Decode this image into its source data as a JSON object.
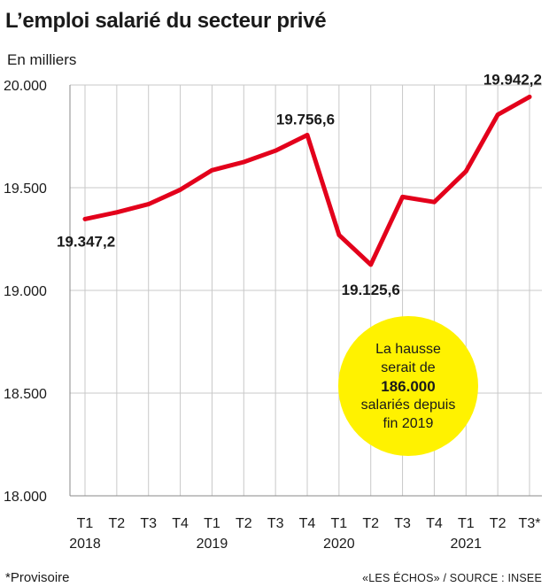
{
  "title": "L’emploi salarié du secteur privé",
  "subtitle": "En milliers",
  "footnote": "*Provisoire",
  "source": "«LES ÉCHOS» / SOURCE : INSEE",
  "callout": {
    "line1": "La hausse",
    "line2": "serait de",
    "line3": "186.000",
    "line4": "salariés depuis",
    "line5": "fin 2019",
    "color": "#fff200"
  },
  "chart_data": {
    "type": "line",
    "title": "L’emploi salarié du secteur privé",
    "ylabel": "En milliers",
    "ylim": [
      18000,
      20000
    ],
    "yticks": [
      18000,
      18500,
      19000,
      19500,
      20000
    ],
    "ytick_labels": [
      "18.000",
      "18.500",
      "19.000",
      "19.500",
      "20.000"
    ],
    "grid": true,
    "line_color": "#e3001b",
    "quarter_labels": [
      "T1",
      "T2",
      "T3",
      "T4",
      "T1",
      "T2",
      "T3",
      "T4",
      "T1",
      "T2",
      "T3",
      "T4",
      "T1",
      "T2",
      "T3*"
    ],
    "year_labels": [
      {
        "label": "2018",
        "index": 0
      },
      {
        "label": "2019",
        "index": 4
      },
      {
        "label": "2020",
        "index": 8
      },
      {
        "label": "2021",
        "index": 12
      }
    ],
    "values": [
      19347.2,
      19380,
      19420,
      19490,
      19585,
      19625,
      19680,
      19756.6,
      19270,
      19125.6,
      19455,
      19430,
      19580,
      19855,
      19942.2
    ],
    "annotations": [
      {
        "index": 0,
        "text": "19.347,2",
        "pos": "below"
      },
      {
        "index": 7,
        "text": "19.756,6",
        "pos": "above"
      },
      {
        "index": 9,
        "text": "19.125,6",
        "pos": "below"
      },
      {
        "index": 14,
        "text": "19.942,2",
        "pos": "above"
      }
    ]
  }
}
